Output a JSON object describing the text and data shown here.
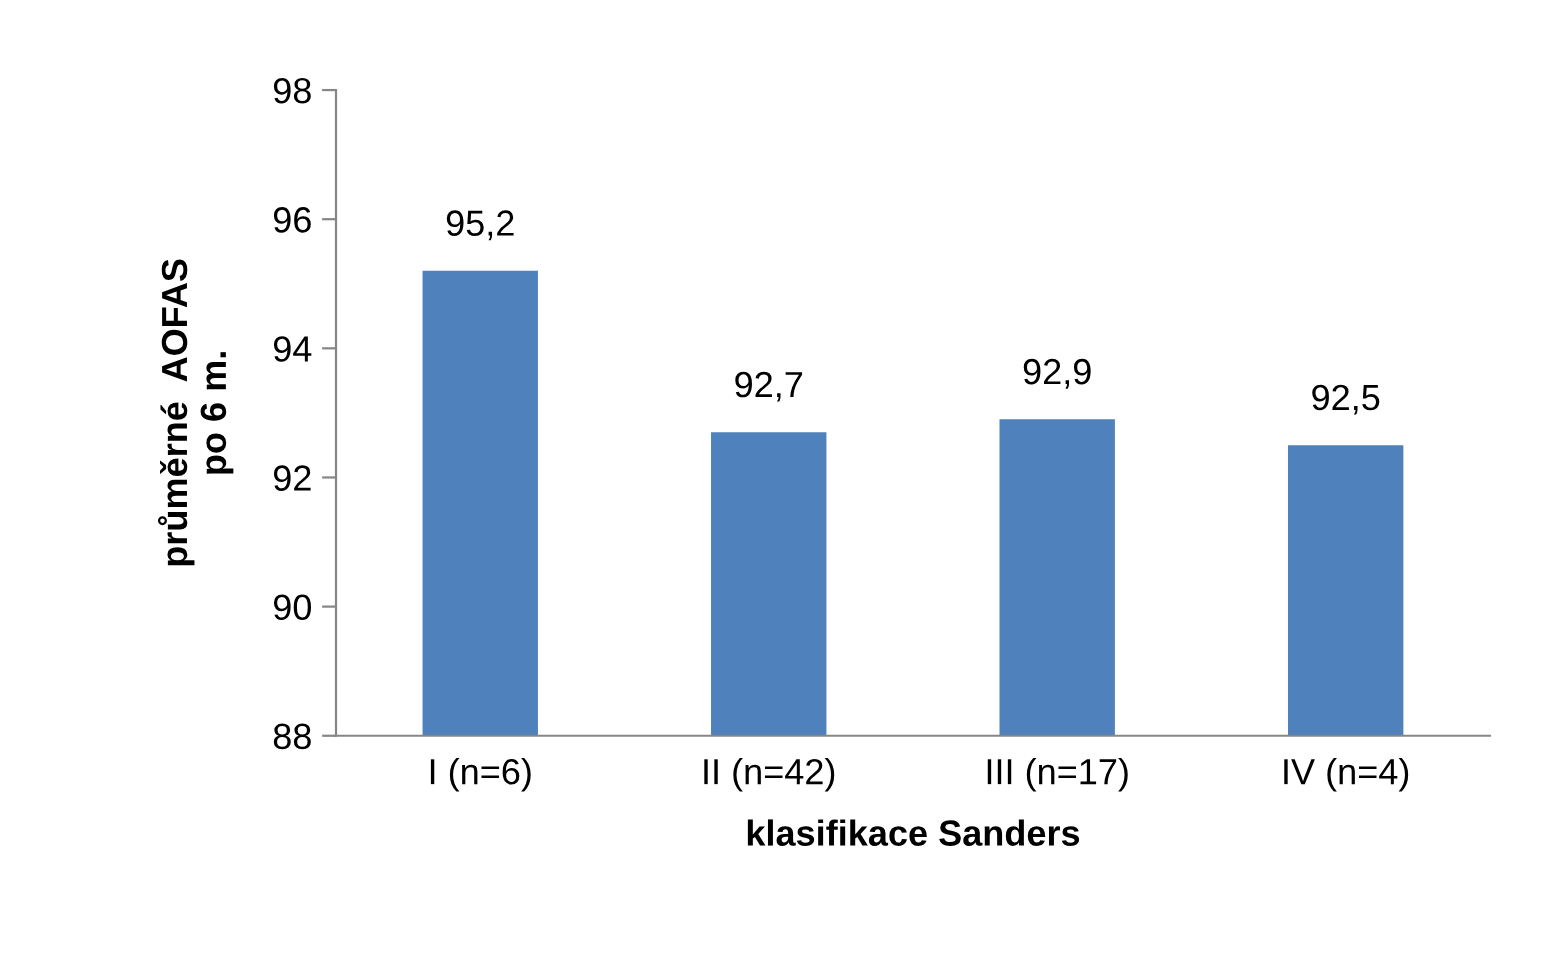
{
  "chart_data": {
    "type": "bar",
    "xlabel": "klasifikace Sanders",
    "ylabel": "průměrné  AOFAS\npo 6 m.",
    "categories": [
      "I (n=6)",
      "II (n=42)",
      "III (n=17)",
      "IV (n=4)"
    ],
    "values": [
      95.2,
      92.7,
      92.9,
      92.5
    ],
    "value_labels": [
      "95,2",
      "92,7",
      "92,9",
      "92,5"
    ],
    "color": "#4f81bd",
    "ylim": [
      88,
      98
    ],
    "yticks": [
      88,
      90,
      92,
      94,
      96,
      98
    ],
    "grid": false,
    "legend": false
  }
}
